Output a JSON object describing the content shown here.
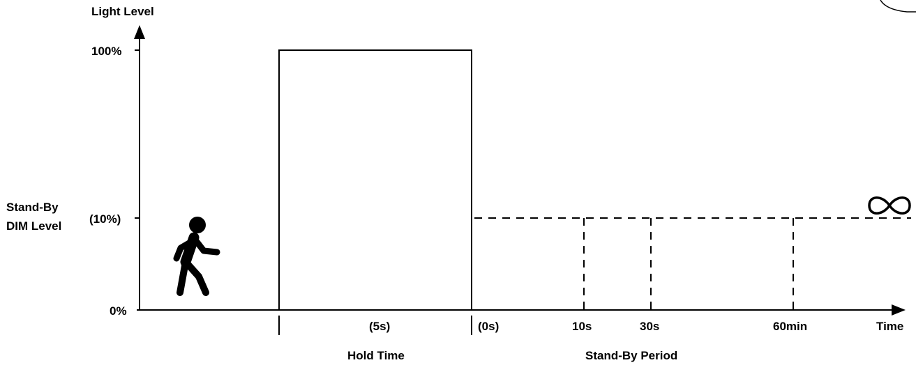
{
  "diagram": {
    "y_axis_label": "Light Level",
    "x_axis_label": "Time",
    "level_100": "100%",
    "level_standby": "(10%)",
    "level_0": "0%",
    "standby_dim_label_line1": "Stand-By",
    "standby_dim_label_line2": "DIM Level",
    "hold_time_value": "(5s)",
    "standby_start_value": "(0s)",
    "standby_option_1": "10s",
    "standby_option_2": "30s",
    "standby_option_3": "60min",
    "hold_time_label": "Hold Time",
    "standby_period_label": "Stand-By Period",
    "infinity_symbol": "∞",
    "person_icon": "walking-person-icon"
  }
}
